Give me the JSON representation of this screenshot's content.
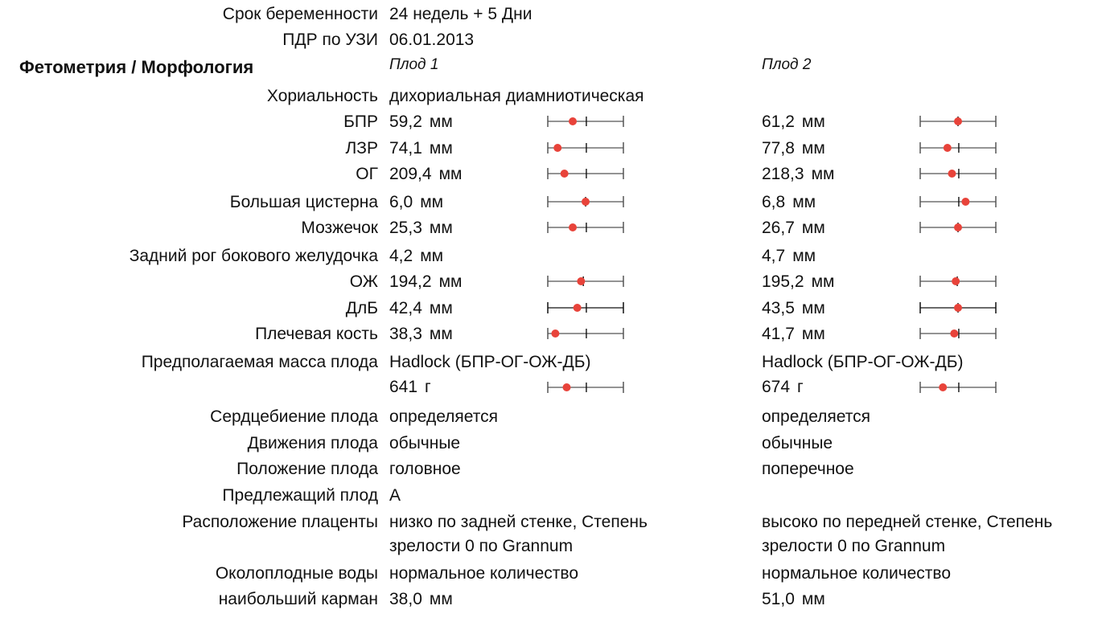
{
  "header": [
    {
      "label": "Срок беременности",
      "value": "24 недель + 5 Дни"
    },
    {
      "label": "ПДР по УЗИ",
      "value": "06.01.2013"
    }
  ],
  "section_title": "Фетометрия / Морфология",
  "fetus_labels": [
    "Плод 1",
    "Плод 2"
  ],
  "chorionicity": {
    "label": "Хориальность",
    "value": "дихориальная диамниотическая"
  },
  "measurements": [
    {
      "label": "БПР",
      "f1": {
        "value": "59,2",
        "unit": "мм",
        "pos": 0.33,
        "ref": 0.51
      },
      "f2": {
        "value": "61,2",
        "unit": "мм",
        "pos": 0.5,
        "ref": 0.5
      }
    },
    {
      "label": "ЛЗР",
      "f1": {
        "value": "74,1",
        "unit": "мм",
        "pos": 0.13,
        "ref": 0.51
      },
      "f2": {
        "value": "77,8",
        "unit": "мм",
        "pos": 0.36,
        "ref": 0.51
      }
    },
    {
      "label": "ОГ",
      "f1": {
        "value": "209,4",
        "unit": "мм",
        "pos": 0.22,
        "ref": 0.51
      },
      "f2": {
        "value": "218,3",
        "unit": "мм",
        "pos": 0.42,
        "ref": 0.51
      }
    },
    {
      "label": "Большая цистерна",
      "f1": {
        "value": "6,0",
        "unit": "мм",
        "pos": 0.5,
        "ref": 0.5
      },
      "f2": {
        "value": "6,8",
        "unit": "мм",
        "pos": 0.6,
        "ref": 0.51
      }
    },
    {
      "label": "Мозжечок",
      "f1": {
        "value": "25,3",
        "unit": "мм",
        "pos": 0.33,
        "ref": 0.51
      },
      "f2": {
        "value": "26,7",
        "unit": "мм",
        "pos": 0.5,
        "ref": 0.5
      }
    },
    {
      "label": "Задний рог бокового желудочка",
      "f1": {
        "value": "4,2",
        "unit": "мм"
      },
      "f2": {
        "value": "4,7",
        "unit": "мм"
      }
    },
    {
      "label": "ОЖ",
      "f1": {
        "value": "194,2",
        "unit": "мм",
        "pos": 0.44,
        "ref": 0.47
      },
      "f2": {
        "value": "195,2",
        "unit": "мм",
        "pos": 0.47,
        "ref": 0.49
      }
    },
    {
      "label": "ДлБ",
      "f1": {
        "value": "42,4",
        "unit": "мм",
        "pos": 0.39,
        "ref": 0.51
      },
      "f2": {
        "value": "43,5",
        "unit": "мм",
        "pos": 0.5,
        "ref": 0.5
      }
    },
    {
      "label": "Плечевая кость",
      "f1": {
        "value": "38,3",
        "unit": "мм",
        "pos": 0.1,
        "ref": 0.51
      },
      "f2": {
        "value": "41,7",
        "unit": "мм",
        "pos": 0.45,
        "ref": 0.51
      }
    }
  ],
  "efw": {
    "label": "Предполагаемая масса плода",
    "f1_method": "Hadlock (БПР-ОГ-ОЖ-ДБ)",
    "f2_method": "Hadlock (БПР-ОГ-ОЖ-ДБ)",
    "f1": {
      "value": "641",
      "unit": "г",
      "pos": 0.25,
      "ref": 0.51
    },
    "f2": {
      "value": "674",
      "unit": "г",
      "pos": 0.3,
      "ref": 0.51
    }
  },
  "observations": [
    {
      "label": "Сердцебиение плода",
      "f1": "определяется",
      "f2": "определяется"
    },
    {
      "label": "Движения плода",
      "f1": "обычные",
      "f2": "обычные"
    },
    {
      "label": "Положение плода",
      "f1": "головное",
      "f2": "поперечное"
    },
    {
      "label": "Предлежащий плод",
      "f1": "A",
      "f2": ""
    }
  ],
  "placenta": {
    "label": "Расположение плаценты",
    "f1_line1": "низко по задней стенке, Степень",
    "f1_line2": "зрелости 0 по Grannum",
    "f2_line1": "высоко по передней стенке, Степень",
    "f2_line2": "зрелости 0 по Grannum"
  },
  "fluid": {
    "label": "Околоплодные воды",
    "f1": "нормальное количество",
    "f2": "нормальное количество"
  },
  "pocket": {
    "label": "наибольший карман",
    "f1": {
      "value": "38,0",
      "unit": "мм"
    },
    "f2": {
      "value": "51,0",
      "unit": "мм"
    }
  },
  "colors": {
    "dot": "#e8433a",
    "line": "#555555",
    "line_dark": "#111111"
  }
}
